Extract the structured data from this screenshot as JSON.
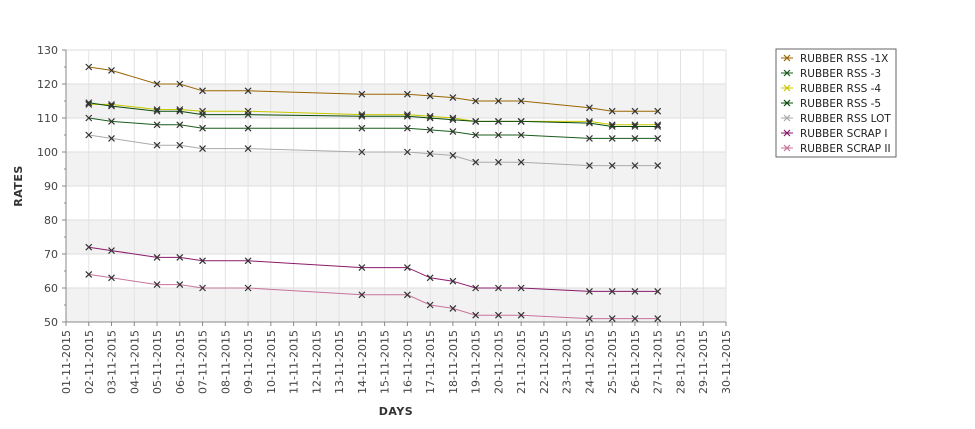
{
  "chart_data": {
    "type": "line",
    "title": "",
    "xlabel": "DAYS",
    "ylabel": "RATES",
    "ylim": [
      50,
      130
    ],
    "yticks": [
      50,
      60,
      70,
      80,
      90,
      100,
      110,
      120,
      130
    ],
    "grid": "alternating horizontal bands with vertical gridlines",
    "legend_position": "top-right",
    "x_ticks": [
      "01-11-2015",
      "02-11-2015",
      "03-11-2015",
      "04-11-2015",
      "05-11-2015",
      "06-11-2015",
      "07-11-2015",
      "08-11-2015",
      "09-11-2015",
      "10-11-2015",
      "11-11-2015",
      "12-11-2015",
      "13-11-2015",
      "14-11-2015",
      "15-11-2015",
      "16-11-2015",
      "17-11-2015",
      "18-11-2015",
      "19-11-2015",
      "20-11-2015",
      "21-11-2015",
      "22-11-2015",
      "23-11-2015",
      "24-11-2015",
      "25-11-2015",
      "26-11-2015",
      "27-11-2015",
      "28-11-2015",
      "29-11-2015",
      "30-11-2015"
    ],
    "x": [
      "02-11-2015",
      "03-11-2015",
      "05-11-2015",
      "06-11-2015",
      "07-11-2015",
      "09-11-2015",
      "14-11-2015",
      "16-11-2015",
      "17-11-2015",
      "18-11-2015",
      "19-11-2015",
      "20-11-2015",
      "21-11-2015",
      "24-11-2015",
      "25-11-2015",
      "26-11-2015",
      "27-11-2015"
    ],
    "series": [
      {
        "name": "RUBBER RSS -1X",
        "color": "#996600",
        "values": [
          125,
          124,
          120,
          120,
          118,
          118,
          117,
          117,
          116.5,
          116,
          115,
          115,
          115,
          113,
          112,
          112,
          112
        ]
      },
      {
        "name": "RUBBER RSS -3",
        "color": "#1a5c1a",
        "values": [
          110,
          109,
          108,
          108,
          107,
          107,
          107,
          107,
          106.5,
          106,
          105,
          105,
          105,
          104,
          104,
          104,
          104
        ]
      },
      {
        "name": "RUBBER RSS -4",
        "color": "#c8c800",
        "values": [
          114,
          114,
          112.5,
          112.5,
          112,
          112,
          111,
          111,
          110.5,
          110,
          109,
          109,
          109,
          109,
          108,
          108,
          108
        ]
      },
      {
        "name": "RUBBER RSS -5",
        "color": "#0a4a0a",
        "values": [
          114.5,
          113.5,
          112,
          112,
          111,
          111,
          110.5,
          110.5,
          110,
          109.5,
          109,
          109,
          109,
          108.5,
          107.5,
          107.5,
          107.5
        ]
      },
      {
        "name": "RUBBER RSS LOT",
        "color": "#aaaaaa",
        "values": [
          105,
          104,
          102,
          102,
          101,
          101,
          100,
          100,
          99.5,
          99,
          97,
          97,
          97,
          96,
          96,
          96,
          96
        ]
      },
      {
        "name": "RUBBER SCRAP I",
        "color": "#8b1a6b",
        "values": [
          72,
          71,
          69,
          69,
          68,
          68,
          66,
          66,
          63,
          62,
          60,
          60,
          60,
          59,
          59,
          59,
          59
        ]
      },
      {
        "name": "RUBBER SCRAP II",
        "color": "#c77399",
        "values": [
          64,
          63,
          61,
          61,
          60,
          60,
          58,
          58,
          55,
          54,
          52,
          52,
          52,
          51,
          51,
          51,
          51
        ]
      }
    ]
  }
}
